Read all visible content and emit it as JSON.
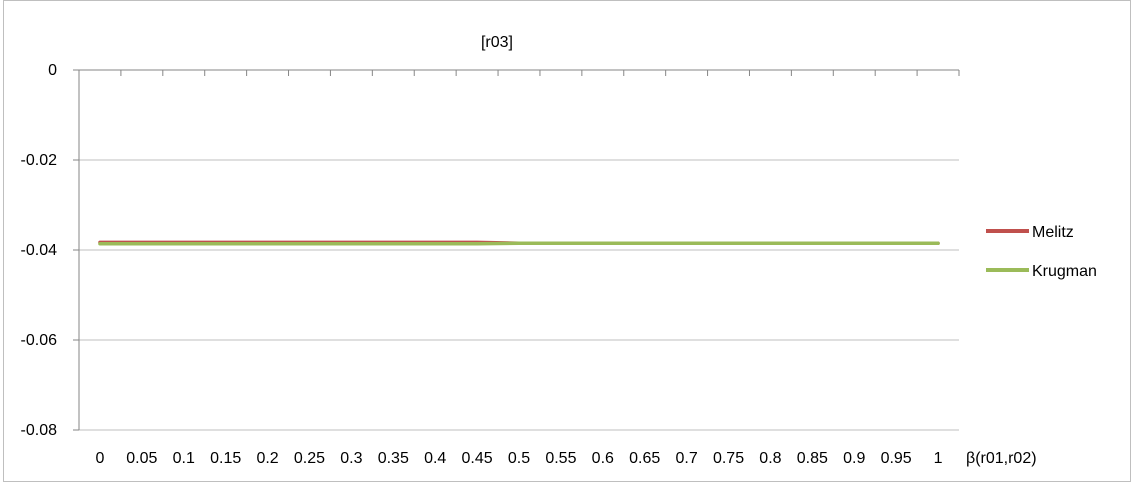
{
  "chart_data": {
    "type": "line",
    "title": "[r03]",
    "xlabel": "β(r01,r02)",
    "ylabel": "",
    "x": [
      0,
      0.05,
      0.1,
      0.15,
      0.2,
      0.25,
      0.3,
      0.35,
      0.4,
      0.45,
      0.5,
      0.55,
      0.6,
      0.65,
      0.7,
      0.75,
      0.8,
      0.85,
      0.9,
      0.95,
      1
    ],
    "x_tick_labels": [
      "0",
      "0.05",
      "0.1",
      "0.15",
      "0.2",
      "0.25",
      "0.3",
      "0.35",
      "0.4",
      "0.45",
      "0.5",
      "0.55",
      "0.6",
      "0.65",
      "0.7",
      "0.75",
      "0.8",
      "0.85",
      "0.9",
      "0.95",
      "1"
    ],
    "ylim": [
      -0.08,
      0
    ],
    "y_ticks": [
      0,
      -0.02,
      -0.04,
      -0.06,
      -0.08
    ],
    "y_tick_labels": [
      "0",
      "-0.02",
      "-0.04",
      "-0.06",
      "-0.08"
    ],
    "grid": true,
    "legend_position": "right",
    "series": [
      {
        "name": "Melitz",
        "color": "#c0504d",
        "values": [
          -0.0383,
          -0.0383,
          -0.0383,
          -0.0383,
          -0.0383,
          -0.0383,
          -0.0383,
          -0.0383,
          -0.0383,
          -0.0383,
          -0.0385,
          -0.0385,
          -0.0385,
          -0.0385,
          -0.0385,
          -0.0385,
          -0.0385,
          -0.0385,
          -0.0385,
          -0.0385,
          -0.0385
        ]
      },
      {
        "name": "Krugman",
        "color": "#9bbb59",
        "values": [
          -0.0386,
          -0.0386,
          -0.0386,
          -0.0386,
          -0.0386,
          -0.0386,
          -0.0386,
          -0.0386,
          -0.0386,
          -0.0386,
          -0.0385,
          -0.0385,
          -0.0385,
          -0.0385,
          -0.0385,
          -0.0385,
          -0.0385,
          -0.0385,
          -0.0385,
          -0.0385,
          -0.0385
        ]
      }
    ]
  }
}
